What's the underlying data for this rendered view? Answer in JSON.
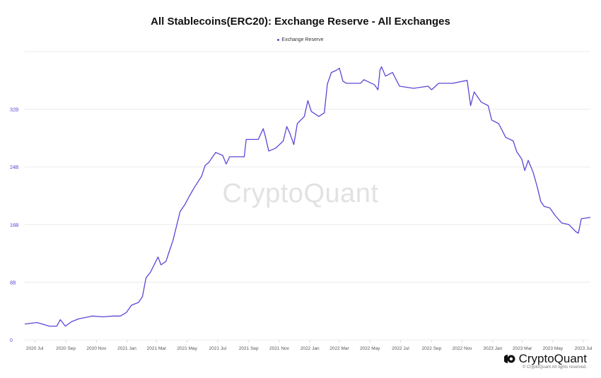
{
  "chart_data": {
    "type": "line",
    "title": "All Stablecoins(ERC20): Exchange Reserve - All Exchanges",
    "legend": [
      "Exchange Reserve"
    ],
    "legend_placement": "top",
    "grid": true,
    "line_color": "#5a48d6",
    "ylim": [
      0,
      40
    ],
    "yticks": [
      {
        "value": 0,
        "label": "0"
      },
      {
        "value": 8,
        "label": "8B"
      },
      {
        "value": 16,
        "label": "16B"
      },
      {
        "value": 24,
        "label": "24B"
      },
      {
        "value": 32,
        "label": "32B"
      }
    ],
    "xticks": [
      {
        "date": "2020-07-01",
        "label": "2020 Jul"
      },
      {
        "date": "2020-09-01",
        "label": "2020 Sep"
      },
      {
        "date": "2020-11-01",
        "label": "2020 Nov"
      },
      {
        "date": "2021-01-01",
        "label": "2021 Jan"
      },
      {
        "date": "2021-03-01",
        "label": "2021 Mar"
      },
      {
        "date": "2021-05-01",
        "label": "2021 May"
      },
      {
        "date": "2021-07-01",
        "label": "2021 Jul"
      },
      {
        "date": "2021-09-01",
        "label": "2021 Sep"
      },
      {
        "date": "2021-11-01",
        "label": "2021 Nov"
      },
      {
        "date": "2022-01-01",
        "label": "2022 Jan"
      },
      {
        "date": "2022-03-01",
        "label": "2022 Mar"
      },
      {
        "date": "2022-05-01",
        "label": "2022 May"
      },
      {
        "date": "2022-07-01",
        "label": "2022 Jul"
      },
      {
        "date": "2022-09-01",
        "label": "2022 Sep"
      },
      {
        "date": "2022-11-01",
        "label": "2022 Nov"
      },
      {
        "date": "2023-01-01",
        "label": "2023 Jan"
      },
      {
        "date": "2023-03-01",
        "label": "2023 Mar"
      },
      {
        "date": "2023-05-01",
        "label": "2023 May"
      },
      {
        "date": "2023-07-01",
        "label": "2023 Jul"
      }
    ],
    "xlim": [
      "2020-06-11",
      "2023-07-15"
    ],
    "series": [
      {
        "name": "Exchange Reserve",
        "unit": "B",
        "points": [
          [
            "2020-06-11",
            2.2
          ],
          [
            "2020-07-05",
            2.4
          ],
          [
            "2020-07-16",
            2.2
          ],
          [
            "2020-07-30",
            1.9
          ],
          [
            "2020-08-14",
            1.9
          ],
          [
            "2020-08-21",
            2.8
          ],
          [
            "2020-08-31",
            1.9
          ],
          [
            "2020-09-12",
            2.5
          ],
          [
            "2020-09-26",
            2.9
          ],
          [
            "2020-10-10",
            3.1
          ],
          [
            "2020-10-24",
            3.3
          ],
          [
            "2020-11-14",
            3.2
          ],
          [
            "2020-12-05",
            3.3
          ],
          [
            "2020-12-19",
            3.3
          ],
          [
            "2020-12-31",
            3.8
          ],
          [
            "2021-01-10",
            4.8
          ],
          [
            "2021-01-24",
            5.2
          ],
          [
            "2021-02-01",
            6.0
          ],
          [
            "2021-02-08",
            8.6
          ],
          [
            "2021-02-17",
            9.4
          ],
          [
            "2021-03-04",
            11.5
          ],
          [
            "2021-03-10",
            10.4
          ],
          [
            "2021-03-20",
            10.9
          ],
          [
            "2021-03-27",
            12.4
          ],
          [
            "2021-04-03",
            13.8
          ],
          [
            "2021-04-17",
            17.8
          ],
          [
            "2021-04-27",
            18.8
          ],
          [
            "2021-05-06",
            20.0
          ],
          [
            "2021-05-16",
            21.2
          ],
          [
            "2021-05-30",
            22.7
          ],
          [
            "2021-06-06",
            24.2
          ],
          [
            "2021-06-13",
            24.6
          ],
          [
            "2021-06-27",
            26.0
          ],
          [
            "2021-07-11",
            25.6
          ],
          [
            "2021-07-18",
            24.4
          ],
          [
            "2021-07-25",
            25.4
          ],
          [
            "2021-08-23",
            25.4
          ],
          [
            "2021-08-27",
            27.8
          ],
          [
            "2021-09-20",
            27.8
          ],
          [
            "2021-09-30",
            29.3
          ],
          [
            "2021-10-04",
            28.3
          ],
          [
            "2021-10-11",
            26.2
          ],
          [
            "2021-10-25",
            26.6
          ],
          [
            "2021-11-09",
            27.6
          ],
          [
            "2021-11-16",
            29.6
          ],
          [
            "2021-11-23",
            28.5
          ],
          [
            "2021-11-30",
            27.1
          ],
          [
            "2021-12-07",
            30.0
          ],
          [
            "2021-12-21",
            31.0
          ],
          [
            "2021-12-28",
            33.2
          ],
          [
            "2022-01-04",
            31.7
          ],
          [
            "2022-01-19",
            31.0
          ],
          [
            "2022-01-30",
            31.5
          ],
          [
            "2022-02-05",
            35.5
          ],
          [
            "2022-02-13",
            37.1
          ],
          [
            "2022-02-23",
            37.4
          ],
          [
            "2022-03-01",
            37.7
          ],
          [
            "2022-03-08",
            35.9
          ],
          [
            "2022-03-15",
            35.6
          ],
          [
            "2022-04-12",
            35.6
          ],
          [
            "2022-04-19",
            36.1
          ],
          [
            "2022-05-10",
            35.4
          ],
          [
            "2022-05-17",
            34.7
          ],
          [
            "2022-05-21",
            37.4
          ],
          [
            "2022-05-24",
            37.9
          ],
          [
            "2022-06-01",
            36.6
          ],
          [
            "2022-06-15",
            37.1
          ],
          [
            "2022-06-29",
            35.2
          ],
          [
            "2022-07-27",
            34.9
          ],
          [
            "2022-08-25",
            35.2
          ],
          [
            "2022-09-01",
            34.7
          ],
          [
            "2022-09-15",
            35.6
          ],
          [
            "2022-10-13",
            35.6
          ],
          [
            "2022-11-11",
            36.0
          ],
          [
            "2022-11-18",
            32.5
          ],
          [
            "2022-11-25",
            34.4
          ],
          [
            "2022-12-09",
            33.0
          ],
          [
            "2022-12-23",
            32.5
          ],
          [
            "2022-12-30",
            30.5
          ],
          [
            "2023-01-13",
            30.0
          ],
          [
            "2023-01-27",
            28.1
          ],
          [
            "2023-02-11",
            27.6
          ],
          [
            "2023-02-18",
            26.1
          ],
          [
            "2023-02-28",
            25.1
          ],
          [
            "2023-03-06",
            23.5
          ],
          [
            "2023-03-13",
            24.9
          ],
          [
            "2023-03-23",
            23.2
          ],
          [
            "2023-03-31",
            21.2
          ],
          [
            "2023-04-07",
            19.2
          ],
          [
            "2023-04-14",
            18.5
          ],
          [
            "2023-04-25",
            18.3
          ],
          [
            "2023-05-05",
            17.3
          ],
          [
            "2023-05-19",
            16.2
          ],
          [
            "2023-06-02",
            16.0
          ],
          [
            "2023-06-16",
            15.0
          ],
          [
            "2023-06-21",
            14.8
          ],
          [
            "2023-06-27",
            16.8
          ],
          [
            "2023-07-15",
            17.0
          ]
        ]
      }
    ]
  },
  "watermark": "CryptoQuant",
  "brand": {
    "logo_text": "CryptoQuant",
    "copyright": "© CryptoQuant All rights reserved."
  }
}
